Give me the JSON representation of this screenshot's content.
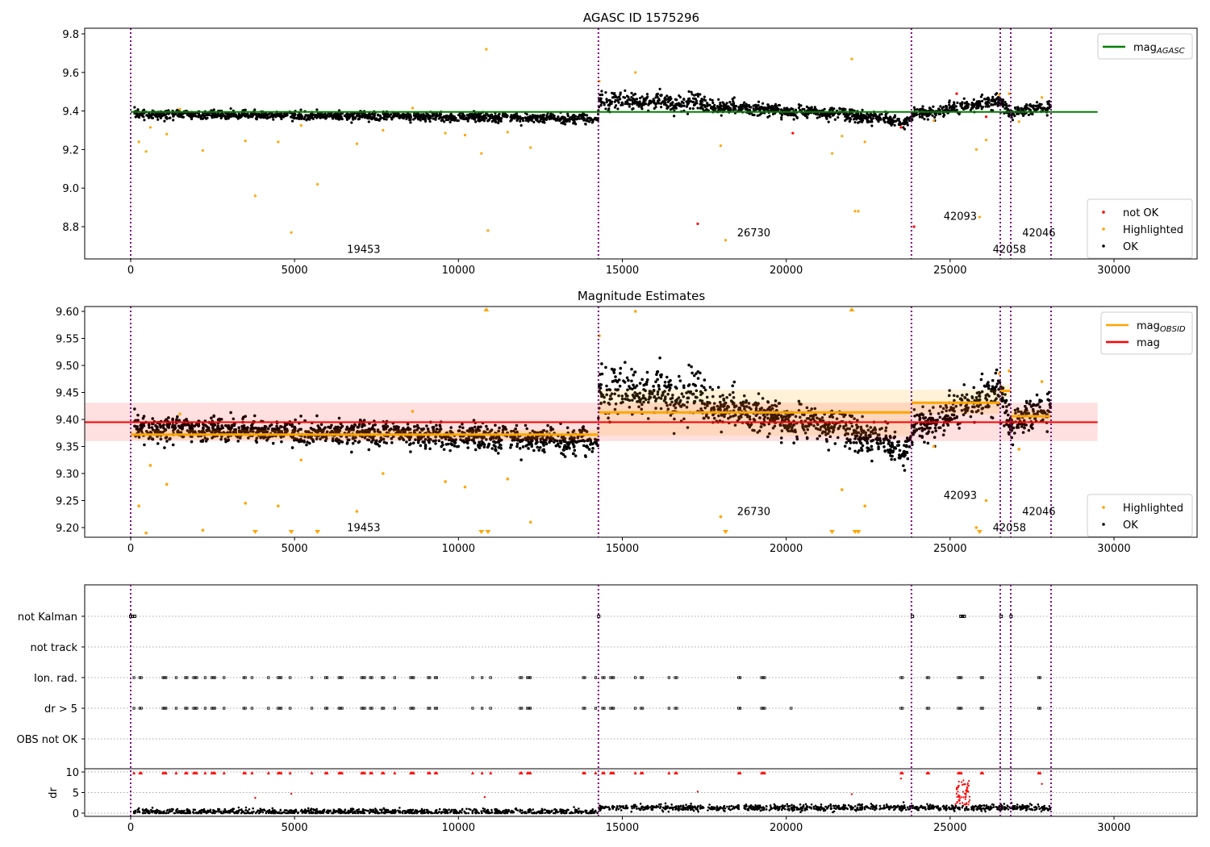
{
  "chart_data": [
    {
      "type": "scatter",
      "title": "AGASC ID 1575296",
      "ylim": [
        8.633,
        9.829
      ],
      "xlim": [
        -1400,
        32540
      ],
      "xticks": [
        0,
        5000,
        10000,
        15000,
        20000,
        25000,
        30000
      ],
      "yticks": [
        "8.8",
        "9.0",
        "9.2",
        "9.4",
        "9.6",
        "9.8"
      ],
      "mag_agasc": 9.395,
      "legend_top": [
        {
          "label": "mag",
          "sub": "AGASC",
          "color": "#008000"
        }
      ],
      "legend_bottom": [
        {
          "label": "not OK",
          "color": "#ff0000"
        },
        {
          "label": "Highlighted",
          "color": "#ffa500"
        },
        {
          "label": "OK",
          "color": "#000000"
        }
      ],
      "not_ok": [
        [
          17300,
          8.815
        ],
        [
          20200,
          9.285
        ],
        [
          23900,
          8.8
        ],
        [
          23500,
          9.315
        ],
        [
          25200,
          9.49
        ],
        [
          26100,
          9.37
        ]
      ],
      "obsid_labels": [
        {
          "text": "19453",
          "x": 6600,
          "y": 8.665
        },
        {
          "text": "26730",
          "x": 18500,
          "y": 8.75
        },
        {
          "text": "42093",
          "x": 24800,
          "y": 8.835
        },
        {
          "text": "42058",
          "x": 26300,
          "y": 8.665
        },
        {
          "text": "42046",
          "x": 27200,
          "y": 8.75
        }
      ]
    },
    {
      "type": "scatter",
      "title": "Magnitude Estimates",
      "ylim": [
        9.182,
        9.609
      ],
      "xticks": [
        0,
        5000,
        10000,
        15000,
        20000,
        25000,
        30000
      ],
      "yticks": [
        "9.20",
        "9.25",
        "9.30",
        "9.35",
        "9.40",
        "9.45",
        "9.50",
        "9.55",
        "9.60"
      ],
      "mag": 9.395,
      "mag_band": [
        9.36,
        9.431
      ],
      "mag_range": [
        0,
        29500
      ],
      "legend_top": [
        {
          "label": "mag",
          "sub": "OBSID",
          "color": "#ffa500"
        },
        {
          "label": "mag",
          "sub": "",
          "color": "#ff0000"
        }
      ],
      "legend_bottom": [
        {
          "label": "Highlighted",
          "color": "#ffa500"
        },
        {
          "label": "OK",
          "color": "#000000"
        }
      ],
      "obsid_labels": [
        {
          "text": "19453",
          "x": 6600,
          "y": 9.193
        },
        {
          "text": "26730",
          "x": 18500,
          "y": 9.223
        },
        {
          "text": "42093",
          "x": 24800,
          "y": 9.253
        },
        {
          "text": "42058",
          "x": 26300,
          "y": 9.193
        },
        {
          "text": "42046",
          "x": 27200,
          "y": 9.223
        }
      ]
    },
    {
      "type": "scatter",
      "title": "",
      "flag_categories": [
        "not Kalman",
        "not track",
        "Ion. rad.",
        "dr > 5",
        "OBS not OK"
      ],
      "dr_label": "dr",
      "dr_ticks": [
        "0",
        "5",
        "10"
      ],
      "xticks": [
        0,
        5000,
        10000,
        15000,
        20000,
        25000,
        30000
      ],
      "not_kalman_x": [
        0,
        60,
        120,
        14280,
        23850,
        25330,
        25380,
        25430,
        26560,
        26860
      ],
      "ion_rad_intervals": [
        [
          100,
          14200
        ],
        [
          14400,
          16800
        ],
        [
          18550,
          18650
        ],
        [
          19250,
          19400
        ],
        [
          23500,
          23550
        ],
        [
          24300,
          24350
        ],
        [
          25250,
          25450
        ],
        [
          25950,
          26050
        ],
        [
          27700,
          27750
        ]
      ],
      "dr_gt5_extra": [
        20150
      ]
    }
  ],
  "obsids": [
    {
      "start": 0,
      "end": 14270,
      "mag_obsid": 9.372,
      "band": [
        9.363,
        9.381
      ]
    },
    {
      "start": 14270,
      "end": 23820,
      "mag_obsid": 9.413,
      "band": [
        9.37,
        9.455
      ]
    },
    {
      "start": 23820,
      "end": 26530,
      "mag_obsid": 9.431,
      "band": [
        9.41,
        9.455
      ]
    },
    {
      "start": 26530,
      "end": 26850,
      "mag_obsid": 9.453,
      "band": [
        9.44,
        9.465
      ]
    },
    {
      "start": 26850,
      "end": 28080,
      "mag_obsid": 9.406,
      "band": [
        9.395,
        9.418
      ]
    }
  ],
  "obs_boundaries": [
    0,
    14270,
    23820,
    26530,
    26850,
    28080
  ],
  "trend": [
    [
      100,
      9.385,
      0.012
    ],
    [
      7000,
      9.373,
      0.012
    ],
    [
      14250,
      9.36,
      0.013
    ],
    [
      14300,
      9.455,
      0.022
    ],
    [
      17000,
      9.44,
      0.022
    ],
    [
      19500,
      9.405,
      0.015
    ],
    [
      22000,
      9.38,
      0.018
    ],
    [
      23750,
      9.34,
      0.015
    ],
    [
      23850,
      9.38,
      0.015
    ],
    [
      26500,
      9.45,
      0.02
    ],
    [
      26880,
      9.395,
      0.018
    ],
    [
      28080,
      9.42,
      0.018
    ]
  ],
  "highlighted": [
    [
      10850,
      9.72
    ],
    [
      15400,
      9.6
    ],
    [
      22000,
      9.67
    ],
    [
      3800,
      8.96
    ],
    [
      5700,
      9.02
    ],
    [
      4900,
      8.77
    ],
    [
      10900,
      8.78
    ],
    [
      18150,
      8.73
    ],
    [
      22100,
      8.88
    ],
    [
      22200,
      8.88
    ],
    [
      25900,
      8.85
    ],
    [
      2200,
      9.195
    ],
    [
      470,
      9.19
    ],
    [
      10700,
      9.18
    ],
    [
      21400,
      9.18
    ],
    [
      12200,
      9.21
    ],
    [
      25800,
      9.2
    ],
    [
      26100,
      9.25
    ],
    [
      6900,
      9.23
    ],
    [
      7700,
      9.3
    ],
    [
      3500,
      9.245
    ],
    [
      250,
      9.24
    ],
    [
      1100,
      9.28
    ],
    [
      4500,
      9.24
    ],
    [
      9600,
      9.285
    ],
    [
      18000,
      9.22
    ],
    [
      21700,
      9.27
    ],
    [
      22400,
      9.24
    ],
    [
      600,
      9.315
    ],
    [
      5200,
      9.325
    ],
    [
      8600,
      9.415
    ],
    [
      14300,
      9.555
    ],
    [
      26800,
      9.49
    ],
    [
      26500,
      9.485
    ],
    [
      27800,
      9.47
    ],
    [
      27100,
      9.345
    ],
    [
      24500,
      9.35
    ],
    [
      1500,
      9.41
    ],
    [
      11500,
      9.29
    ],
    [
      10200,
      9.275
    ]
  ],
  "colors": {
    "ok": "#000000",
    "highlighted": "#ffa500",
    "not_ok": "#ff0000",
    "boundary": "#800080",
    "mag_agasc": "#008000",
    "mag": "#ff0000",
    "mag_obsid": "#ffa500"
  }
}
